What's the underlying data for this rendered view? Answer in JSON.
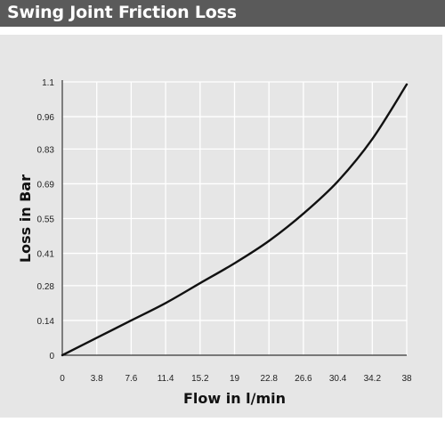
{
  "header": {
    "title": "Swing Joint Friction Loss"
  },
  "colors": {
    "header_bg": "#5a5a5a",
    "panel_bg": "#e6e6e6",
    "grid": "#ffffff",
    "curve": "#111111"
  },
  "chart_data": {
    "type": "line",
    "title": "Swing Joint Friction Loss",
    "xlabel": "Flow in l/min",
    "ylabel": "Loss in Bar",
    "x_ticks": [
      "0",
      "3.8",
      "7.6",
      "11.4",
      "15.2",
      "19",
      "22.8",
      "26.6",
      "30.4",
      "34.2",
      "38"
    ],
    "y_ticks": [
      "0",
      "0.14",
      "0.28",
      "0.41",
      "0.55",
      "0.69",
      "0.83",
      "0.96",
      "1.1"
    ],
    "xlim": [
      0,
      38
    ],
    "ylim": [
      0,
      1.1
    ],
    "grid": true,
    "legend": "none",
    "series": [
      {
        "x": [
          0,
          3.8,
          7.6,
          11.4,
          15.2,
          19,
          22.8,
          26.6,
          30.4,
          34.2,
          38
        ],
        "y": [
          0,
          0.07,
          0.14,
          0.21,
          0.29,
          0.37,
          0.46,
          0.57,
          0.7,
          0.87,
          1.09
        ]
      }
    ]
  }
}
